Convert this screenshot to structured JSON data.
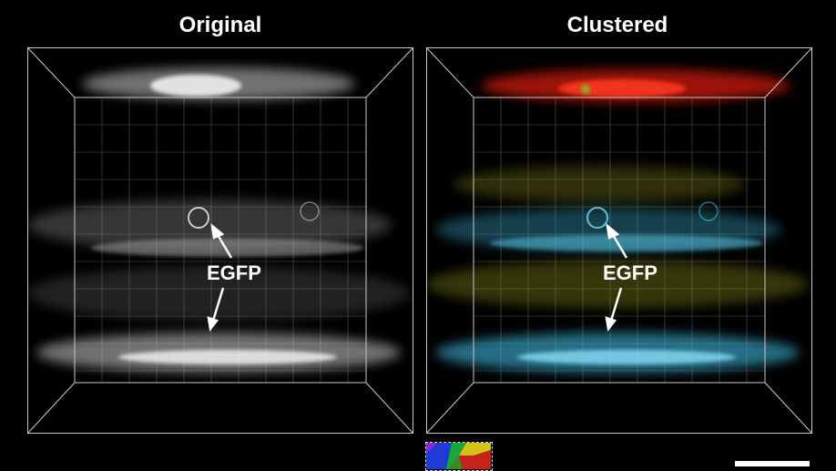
{
  "panels": {
    "left": {
      "title": "Original",
      "label": "EGFP"
    },
    "right": {
      "title": "Clustered",
      "label": "EGFP"
    }
  },
  "colors": {
    "background": "#000000",
    "original_signal": "#d9d9d9",
    "cluster_cyan": "#3fb7dd",
    "cluster_yellow": "#9a9a20",
    "cluster_red": "#e01a10",
    "cluster_green": "#7ac21a"
  },
  "legend": {
    "type": "color-wheel",
    "colors": [
      "#1f3bd6",
      "#17a83a",
      "#d4c21c",
      "#c8211a",
      "#8a2ad0"
    ]
  },
  "scale_bar": {
    "visible": true
  }
}
